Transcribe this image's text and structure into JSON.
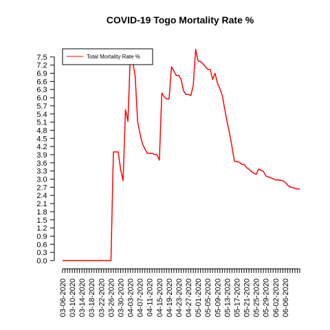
{
  "chart_data": {
    "type": "line",
    "title": "COVID-19 Togo Mortality Rate %",
    "xlabel": "",
    "ylabel": "",
    "ylim": [
      0,
      7.8
    ],
    "y_ticks": [
      "0.0",
      "0.3",
      "0.6",
      "0.9",
      "1.2",
      "1.5",
      "1.8",
      "2.1",
      "2.4",
      "2.7",
      "3.0",
      "3.3",
      "3.6",
      "3.9",
      "4.2",
      "4.5",
      "4.8",
      "5.1",
      "5.4",
      "5.7",
      "6.0",
      "6.3",
      "6.6",
      "6.9",
      "7.2",
      "7.5"
    ],
    "x_labels": [
      "03-06-2020",
      "03-10-2020",
      "03-14-2020",
      "03-18-2020",
      "03-22-2020",
      "03-26-2020",
      "03-30-2020",
      "04-03-2020",
      "04-07-2020",
      "04-11-2020",
      "04-15-2020",
      "04-19-2020",
      "04-23-2020",
      "04-27-2020",
      "05-01-2020",
      "05-05-2020",
      "05-09-2020",
      "05-13-2020",
      "05-17-2020",
      "05-21-2020",
      "05-25-2020",
      "05-29-2020",
      "06-02-2020",
      "06-06-2020"
    ],
    "legend": {
      "position": "top-left",
      "entries": [
        "Total Mortality Rate %"
      ]
    },
    "grid": false,
    "series": [
      {
        "name": "Total Mortality Rate %",
        "color": "#ff0000",
        "values": [
          0,
          0,
          0,
          0,
          0,
          0,
          0,
          0,
          0,
          0,
          0,
          0,
          0,
          0,
          0,
          0,
          0,
          0,
          0,
          0,
          0,
          4.0,
          4.0,
          4.0,
          3.35,
          2.94,
          5.56,
          5.13,
          7.56,
          7.32,
          6.8,
          5.13,
          4.67,
          4.3,
          4.12,
          3.95,
          3.95,
          3.95,
          3.91,
          3.9,
          3.7,
          6.17,
          6.03,
          5.95,
          5.95,
          7.14,
          6.98,
          6.82,
          6.82,
          6.67,
          6.25,
          6.12,
          6.12,
          6.08,
          6.45,
          7.78,
          7.35,
          7.33,
          7.25,
          7.14,
          7.04,
          7.04,
          6.67,
          6.9,
          6.53,
          6.33,
          6.07,
          5.58,
          5.1,
          4.69,
          4.2,
          3.66,
          3.65,
          3.62,
          3.55,
          3.54,
          3.43,
          3.36,
          3.28,
          3.22,
          3.18,
          3.37,
          3.33,
          3.28,
          3.12,
          3.08,
          3.05,
          3.01,
          2.97,
          2.97,
          2.96,
          2.94,
          2.88,
          2.78,
          2.71,
          2.69,
          2.66,
          2.64,
          2.63
        ]
      }
    ]
  }
}
